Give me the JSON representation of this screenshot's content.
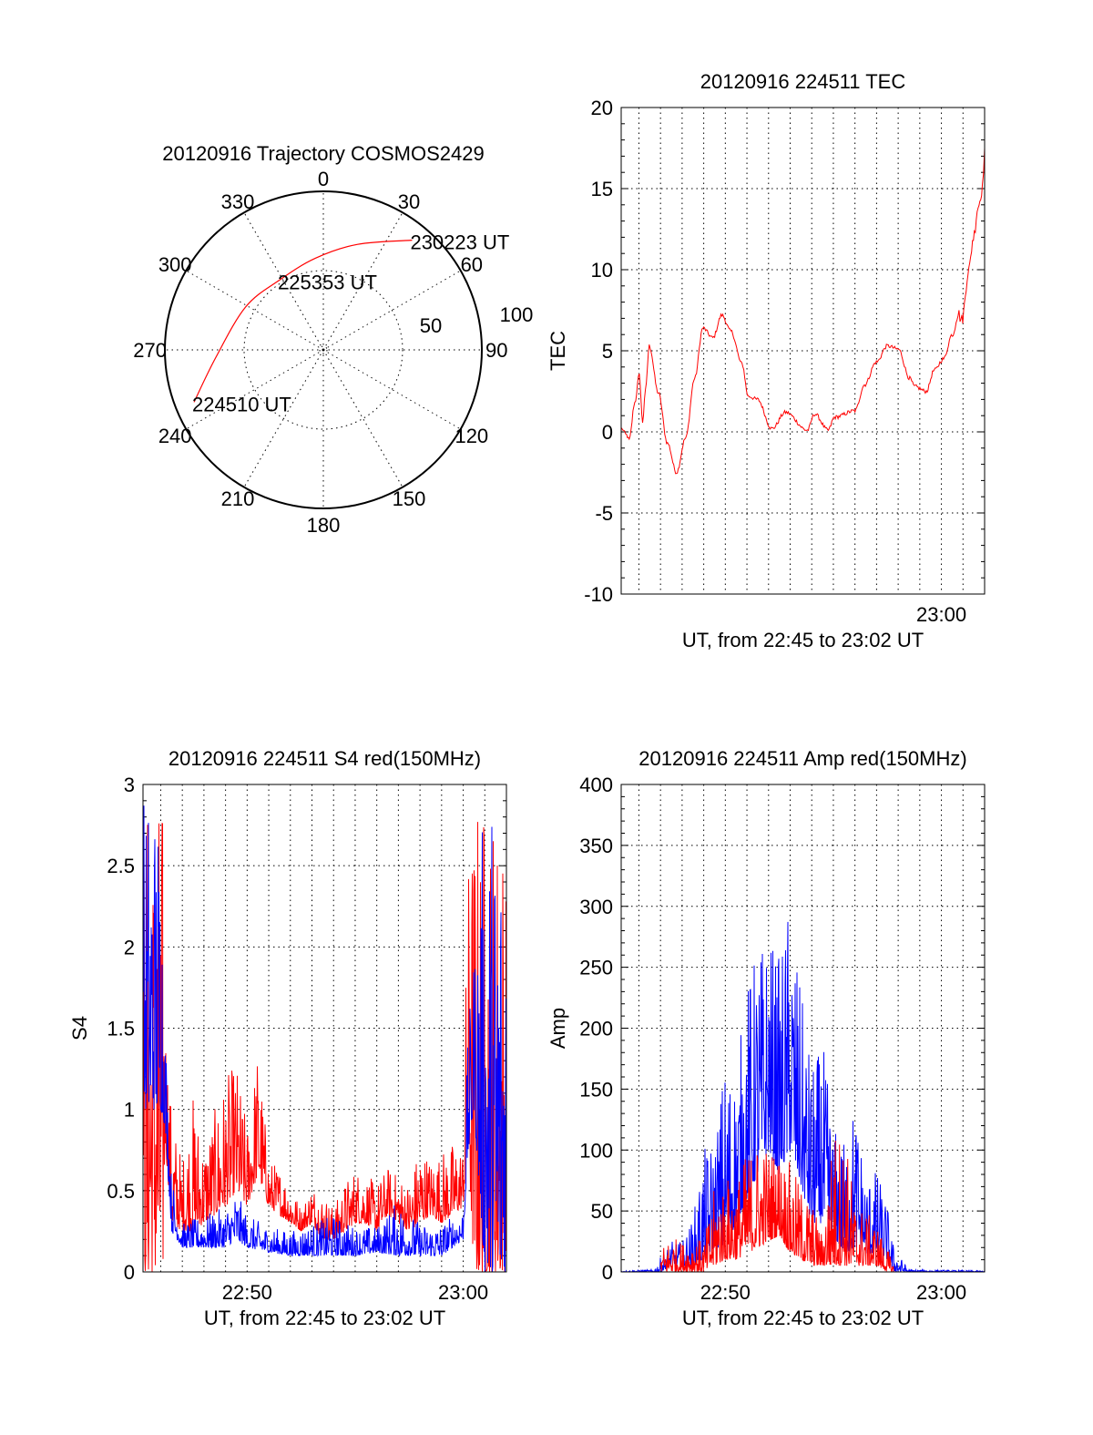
{
  "chart_data": [
    {
      "type": "polar",
      "title": "20120916 Trajectory COSMOS2429",
      "azimuth_labels": [
        "0",
        "30",
        "60",
        "90",
        "120",
        "150",
        "180",
        "210",
        "240",
        "270",
        "300",
        "330"
      ],
      "radial_labels": [
        "50",
        "100"
      ],
      "rlim": [
        0,
        100
      ],
      "grid": true,
      "series": [
        {
          "name": "trajectory",
          "color": "#ff0000",
          "azimuth_deg": [
            248,
            266,
            299,
            328,
            355,
            18,
            39
          ],
          "radius": [
            88,
            68,
            56,
            52,
            58,
            70,
            89
          ]
        }
      ],
      "annotations": [
        {
          "text": "224510 UT",
          "azimuth_deg": 248,
          "radius": 88
        },
        {
          "text": "225353 UT",
          "azimuth_deg": 328,
          "radius": 52
        },
        {
          "text": "230223 UT",
          "azimuth_deg": 39,
          "radius": 89
        }
      ]
    },
    {
      "type": "line",
      "title": "20120916 224511 TEC",
      "xlabel": "UT, from 22:45 to 23:02 UT",
      "ylabel": "TEC",
      "x_units": "minutes after 22:45 UT",
      "xlim": [
        0.18,
        17.0
      ],
      "ylim": [
        -10,
        20
      ],
      "yticks": [
        "-10",
        "-5",
        "0",
        "5",
        "10",
        "15",
        "20"
      ],
      "xticks": [
        {
          "value": 15,
          "label": "23:00"
        }
      ],
      "grid": true,
      "series": [
        {
          "name": "TEC",
          "color": "#ff0000",
          "x": [
            0.2,
            0.43,
            0.55,
            0.81,
            1.02,
            1.17,
            1.3,
            1.48,
            1.9,
            2.32,
            2.74,
            3.16,
            3.58,
            3.96,
            4.42,
            4.84,
            5.26,
            5.77,
            6.06,
            6.48,
            7.16,
            7.79,
            8.8,
            9.13,
            9.76,
            10.05,
            11.0,
            11.44,
            11.99,
            12.5,
            13.0,
            13.54,
            13.75,
            14.3,
            14.67,
            15.1,
            15.5,
            15.77,
            15.95,
            16.27,
            16.48,
            16.7,
            16.9,
            17.0
          ],
          "y": [
            0.2,
            -0.2,
            -0.5,
            1.8,
            3.5,
            0.6,
            2.5,
            5.3,
            2.4,
            -0.7,
            -2.5,
            -0.4,
            3.3,
            6.4,
            5.8,
            7.2,
            6.2,
            4.2,
            2.2,
            2.0,
            0.2,
            1.2,
            0.1,
            1.1,
            0.1,
            0.9,
            1.3,
            2.9,
            4.3,
            5.3,
            5.1,
            3.3,
            2.8,
            2.5,
            3.8,
            4.5,
            6.0,
            7.3,
            6.9,
            10.0,
            12.0,
            13.9,
            15.0,
            17.5
          ]
        }
      ]
    },
    {
      "type": "line",
      "title": "20120916 224511 S4 red(150MHz)",
      "xlabel": "UT, from 22:45 to 23:02 UT",
      "ylabel": "S4",
      "x_units": "minutes after 22:45 UT",
      "xlim": [
        0.18,
        17.0
      ],
      "ylim": [
        0,
        3
      ],
      "yticks": [
        "0",
        "0.5",
        "1",
        "1.5",
        "2",
        "2.5",
        "3"
      ],
      "xticks": [
        {
          "value": 5,
          "label": "22:50"
        },
        {
          "value": 15,
          "label": "23:00"
        }
      ],
      "grid": true,
      "series": [
        {
          "name": "red",
          "color": "#ff0000",
          "x": [
            0.2,
            1.1,
            1.2,
            1.5,
            2,
            2.5,
            3,
            3.5,
            4,
            4.5,
            5,
            5.5,
            6,
            6.5,
            7,
            7.5,
            8,
            8.5,
            9,
            9.5,
            10,
            10.5,
            11,
            11.5,
            12,
            12.5,
            13,
            13.5,
            14,
            14.5,
            15,
            15.2,
            15.5,
            17.0
          ],
          "low": [
            0,
            0,
            0.8,
            0.3,
            0.25,
            0.25,
            0.3,
            0.35,
            0.4,
            0.5,
            0.4,
            0.6,
            0.4,
            0.35,
            0.3,
            0.25,
            0.3,
            0.2,
            0.2,
            0.25,
            0.3,
            0.3,
            0.25,
            0.35,
            0.3,
            0.25,
            0.3,
            0.35,
            0.3,
            0.35,
            0.4,
            0.8,
            0,
            0
          ],
          "high": [
            3,
            3,
            1.7,
            1.0,
            0.7,
            1.1,
            0.8,
            1.0,
            1.2,
            1.3,
            0.9,
            1.4,
            0.7,
            0.65,
            0.55,
            0.4,
            0.55,
            0.5,
            0.4,
            0.55,
            0.65,
            0.6,
            0.55,
            0.65,
            0.6,
            0.55,
            0.8,
            0.7,
            0.75,
            0.8,
            0.8,
            2.5,
            3,
            3
          ]
        },
        {
          "name": "blue",
          "color": "#0000ff",
          "x": [
            0.2,
            1.0,
            1.2,
            1.5,
            2,
            3,
            4,
            4.5,
            5,
            6,
            7,
            8,
            9,
            10,
            11,
            12,
            13,
            14,
            15,
            15.2,
            15.5,
            16,
            17.0
          ],
          "low": [
            1.0,
            1.0,
            0.9,
            0.25,
            0.15,
            0.15,
            0.15,
            0.2,
            0.15,
            0.12,
            0.1,
            0.1,
            0.1,
            0.1,
            0.12,
            0.1,
            0.1,
            0.1,
            0.2,
            0.7,
            1.0,
            0,
            0
          ],
          "high": [
            3,
            3,
            1.6,
            0.6,
            0.3,
            0.35,
            0.4,
            0.5,
            0.35,
            0.28,
            0.25,
            0.3,
            0.35,
            0.28,
            0.28,
            0.45,
            0.3,
            0.3,
            0.4,
            1.4,
            2.0,
            3,
            3
          ]
        }
      ]
    },
    {
      "type": "line",
      "title": "20120916 224511 Amp red(150MHz)",
      "xlabel": "UT, from 22:45 to 23:02 UT",
      "ylabel": "Amp",
      "x_units": "minutes after 22:45 UT",
      "xlim": [
        0.18,
        17.0
      ],
      "ylim": [
        0,
        400
      ],
      "yticks": [
        "0",
        "50",
        "100",
        "150",
        "200",
        "250",
        "300",
        "350",
        "400"
      ],
      "xticks": [
        {
          "value": 5,
          "label": "22:50"
        },
        {
          "value": 15,
          "label": "23:00"
        }
      ],
      "grid": true,
      "series": [
        {
          "name": "blue",
          "color": "#0000ff",
          "x": [
            0.2,
            1.7,
            2,
            2.5,
            3,
            3.5,
            4,
            4.5,
            5,
            5.5,
            6,
            6.5,
            7,
            7.5,
            8,
            8.5,
            9,
            9.5,
            10,
            10.5,
            11,
            11.5,
            12,
            12.5,
            12.8,
            13.5,
            17.0
          ],
          "low": [
            0,
            0,
            0,
            5,
            5,
            5,
            10,
            20,
            20,
            40,
            60,
            80,
            100,
            80,
            100,
            70,
            40,
            40,
            30,
            15,
            20,
            15,
            15,
            10,
            0,
            0,
            0
          ],
          "high": [
            1,
            2,
            12,
            25,
            25,
            45,
            100,
            110,
            180,
            165,
            240,
            270,
            280,
            260,
            310,
            230,
            170,
            190,
            120,
            110,
            145,
            80,
            85,
            55,
            20,
            2,
            1
          ]
        },
        {
          "name": "red",
          "color": "#ff0000",
          "x": [
            2,
            2.5,
            3,
            3.5,
            4,
            4.5,
            5,
            5.5,
            6,
            6.5,
            7,
            7.5,
            8,
            8.5,
            9,
            9.5,
            10,
            10.5,
            11,
            11.5,
            12,
            12.5,
            12.8
          ],
          "low": [
            0,
            0,
            0,
            0,
            0,
            5,
            10,
            10,
            15,
            20,
            25,
            30,
            15,
            10,
            5,
            5,
            5,
            5,
            5,
            5,
            5,
            0,
            0
          ],
          "high": [
            20,
            30,
            25,
            30,
            25,
            70,
            80,
            75,
            100,
            110,
            105,
            100,
            90,
            70,
            60,
            30,
            120,
            120,
            60,
            50,
            40,
            20,
            5
          ]
        }
      ]
    }
  ]
}
